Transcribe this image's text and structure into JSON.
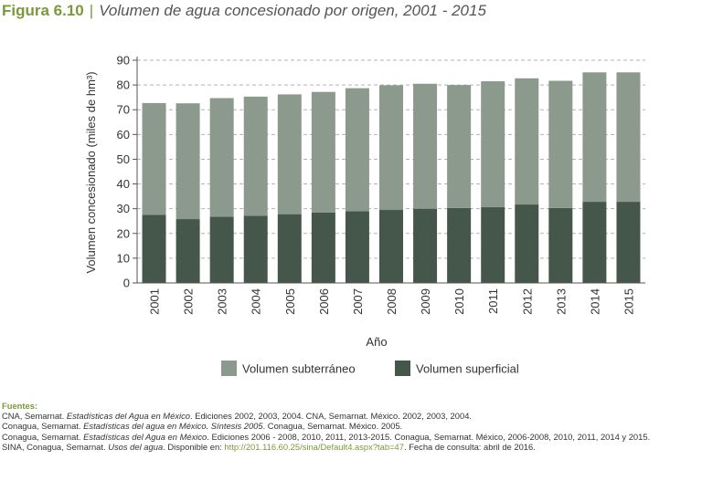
{
  "figure": {
    "number": "Figura 6.10",
    "separator": "|",
    "title": "Volumen de agua concesionado por origen, 2001 - 2015"
  },
  "chart_data": {
    "type": "bar",
    "stacked": true,
    "categories": [
      "2001",
      "2002",
      "2003",
      "2004",
      "2005",
      "2006",
      "2007",
      "2008",
      "2009",
      "2010",
      "2011",
      "2012",
      "2013",
      "2014",
      "2015"
    ],
    "series": [
      {
        "name": "Volumen superficial",
        "color": "#45574a",
        "values": [
          27.5,
          25.8,
          26.8,
          27.2,
          27.8,
          28.5,
          29.0,
          29.5,
          30.0,
          30.3,
          30.6,
          31.7,
          30.3,
          32.8,
          32.8
        ]
      },
      {
        "name": "Volumen subterráneo",
        "color": "#8c9a8d",
        "values": [
          45.2,
          46.8,
          47.9,
          48.1,
          48.4,
          48.7,
          49.7,
          50.4,
          50.5,
          49.7,
          50.9,
          51.0,
          51.4,
          52.3,
          52.3
        ]
      }
    ],
    "xlabel": "Año",
    "ylabel": "Volumen concesionado (miles de hm³)",
    "ylim": [
      0,
      90
    ],
    "yticks": [
      0,
      10,
      20,
      30,
      40,
      50,
      60,
      70,
      80,
      90
    ],
    "grid": "dashed horizontal",
    "legend_position": "bottom-center",
    "legend_order": [
      "Volumen subterráneo",
      "Volumen superficial"
    ]
  },
  "sources": {
    "heading": "Fuentes:",
    "lines": [
      {
        "parts": [
          {
            "t": "CNA, Semarnat. "
          },
          {
            "t": "Estadísticas del Agua en México",
            "i": true
          },
          {
            "t": ". Ediciones 2002, 2003, 2004. CNA, Semarnat. México. 2002, 2003, 2004."
          }
        ]
      },
      {
        "parts": [
          {
            "t": "Conagua, Semarnat. "
          },
          {
            "t": "Estadísticas del agua en México. Síntesis 2005",
            "i": true
          },
          {
            "t": ". Conagua, Semarnat. México. 2005."
          }
        ]
      },
      {
        "parts": [
          {
            "t": "Conagua, Semarnat. "
          },
          {
            "t": "Estadísticas del Agua en México",
            "i": true
          },
          {
            "t": ". Ediciones 2006 - 2008, 2010, 2011, 2013-2015. Conagua, Semarnat. México, 2006-2008, 2010, 2011, 2014 y 2015."
          }
        ]
      },
      {
        "parts": [
          {
            "t": "SINA, Conagua, Semarnat. "
          },
          {
            "t": "Usos del agua",
            "i": true
          },
          {
            "t": ". Disponible en: "
          },
          {
            "t": "http://201.116.60.25/sina/Default4.aspx?tab=47",
            "link": true
          },
          {
            "t": ". Fecha de consulta: abril de 2016."
          }
        ]
      }
    ]
  }
}
